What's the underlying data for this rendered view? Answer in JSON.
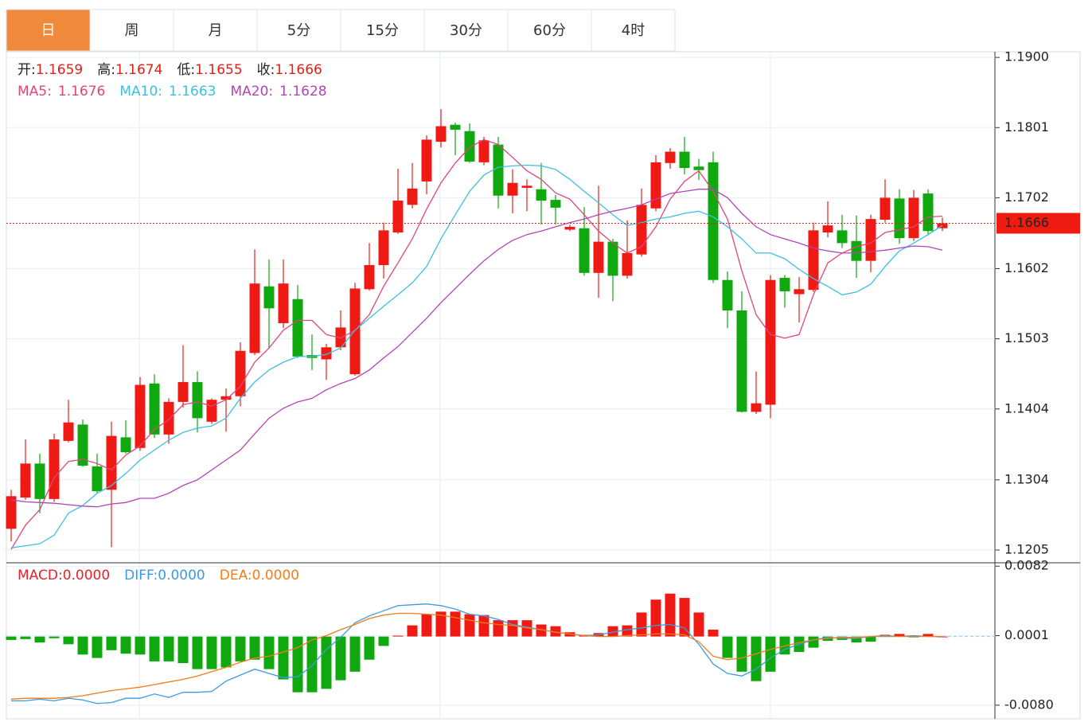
{
  "tabs": {
    "items": [
      "日",
      "周",
      "月",
      "5分",
      "15分",
      "30分",
      "60分",
      "4时"
    ],
    "active": 0
  },
  "chart_data": [
    {
      "type": "candlestick",
      "ylim": [
        1.1187,
        1.1908
      ],
      "yticks": [
        {
          "value": 1.19,
          "label": "1.1900"
        },
        1.1801,
        1.1702,
        1.1602,
        1.1503,
        1.1404,
        1.1304,
        1.1205
      ],
      "grid": true,
      "up_color": "#f01a14",
      "down_color": "#0fa80f",
      "last_price": 1.1666,
      "ohlc_labels": [
        {
          "label": "开:",
          "value": 1.1659
        },
        {
          "label": "高:",
          "value": 1.1674
        },
        {
          "label": "低:",
          "value": 1.1655
        },
        {
          "label": "收:",
          "value": 1.1666
        }
      ],
      "open": [
        1.1235,
        1.1279,
        1.1327,
        1.1277,
        1.1359,
        1.1382,
        1.1323,
        1.129,
        1.1364,
        1.1349,
        1.144,
        1.1368,
        1.1414,
        1.1442,
        1.1386,
        1.1417,
        1.1422,
        1.1483,
        1.1577,
        1.1525,
        1.1559,
        1.148,
        1.1474,
        1.1491,
        1.1453,
        1.1573,
        1.1607,
        1.1653,
        1.1692,
        1.1725,
        1.1781,
        1.1805,
        1.1796,
        1.1752,
        1.1777,
        1.1705,
        1.1716,
        1.1714,
        1.1699,
        1.1657,
        1.1659,
        1.1596,
        1.164,
        1.1592,
        1.1622,
        1.1687,
        1.1751,
        1.1767,
        1.1746,
        1.1752,
        1.1586,
        1.1543,
        1.14,
        1.141,
        1.1589,
        1.1566,
        1.1572,
        1.1653,
        1.1656,
        1.1641,
        1.1613,
        1.1671,
        1.1701,
        1.1645,
        1.1708,
        1.1659
      ],
      "high": [
        1.129,
        1.1361,
        1.1341,
        1.1369,
        1.1417,
        1.1389,
        1.1341,
        1.1386,
        1.1388,
        1.1449,
        1.1453,
        1.1419,
        1.1494,
        1.1457,
        1.1419,
        1.1433,
        1.1498,
        1.1629,
        1.1615,
        1.1615,
        1.1579,
        1.1509,
        1.1496,
        1.1543,
        1.1582,
        1.1638,
        1.1667,
        1.1743,
        1.1751,
        1.179,
        1.1827,
        1.1808,
        1.1807,
        1.1788,
        1.1788,
        1.1742,
        1.1728,
        1.1751,
        1.1706,
        1.1664,
        1.1689,
        1.1719,
        1.1644,
        1.167,
        1.1715,
        1.1762,
        1.1772,
        1.1788,
        1.1757,
        1.1767,
        1.1598,
        1.157,
        1.1457,
        1.1593,
        1.1593,
        1.159,
        1.1667,
        1.1697,
        1.1678,
        1.1677,
        1.1678,
        1.1728,
        1.1714,
        1.1713,
        1.1714,
        1.1674
      ],
      "low": [
        1.1217,
        1.1276,
        1.1257,
        1.1273,
        1.1357,
        1.1322,
        1.1285,
        1.1209,
        1.1341,
        1.1345,
        1.1363,
        1.1355,
        1.1406,
        1.1371,
        1.1383,
        1.1372,
        1.1408,
        1.148,
        1.1489,
        1.1518,
        1.1476,
        1.1459,
        1.1445,
        1.1487,
        1.1451,
        1.1571,
        1.1588,
        1.1651,
        1.1687,
        1.1707,
        1.1773,
        1.1762,
        1.1751,
        1.1748,
        1.1687,
        1.168,
        1.1683,
        1.1664,
        1.1664,
        1.1655,
        1.1592,
        1.1561,
        1.1556,
        1.1588,
        1.1619,
        1.1683,
        1.1743,
        1.1735,
        1.1727,
        1.1582,
        1.1518,
        1.1399,
        1.1397,
        1.1391,
        1.1547,
        1.1526,
        1.1569,
        1.1646,
        1.1631,
        1.1589,
        1.1597,
        1.1667,
        1.1637,
        1.1641,
        1.1649,
        1.1655
      ],
      "close": [
        1.1281,
        1.1327,
        1.1277,
        1.1361,
        1.1385,
        1.1324,
        1.1288,
        1.1366,
        1.1343,
        1.1438,
        1.1368,
        1.1414,
        1.1442,
        1.1391,
        1.1417,
        1.1422,
        1.1486,
        1.1581,
        1.1546,
        1.1581,
        1.1478,
        1.1476,
        1.1491,
        1.1519,
        1.1574,
        1.1607,
        1.1656,
        1.1698,
        1.1715,
        1.1784,
        1.1803,
        1.1798,
        1.1753,
        1.1783,
        1.1705,
        1.1723,
        1.1719,
        1.1698,
        1.1688,
        1.1661,
        1.1596,
        1.164,
        1.1592,
        1.1624,
        1.1692,
        1.1752,
        1.1767,
        1.1744,
        1.1741,
        1.1586,
        1.1543,
        1.14,
        1.1412,
        1.1586,
        1.157,
        1.1573,
        1.1656,
        1.1663,
        1.1638,
        1.1613,
        1.1672,
        1.1702,
        1.1645,
        1.1702,
        1.1655,
        1.1666
      ],
      "series": [
        {
          "name": "MA5:",
          "color": "#e0457b",
          "value_now": 1.1676,
          "values": [
            1.1206,
            1.124,
            1.1262,
            1.1307,
            1.133,
            1.1333,
            1.1327,
            1.1318,
            1.1339,
            1.1352,
            1.1375,
            1.1389,
            1.141,
            1.1414,
            1.1408,
            1.1417,
            1.1436,
            1.147,
            1.149,
            1.1515,
            1.1529,
            1.1529,
            1.1509,
            1.1504,
            1.1515,
            1.1537,
            1.1577,
            1.161,
            1.1644,
            1.1686,
            1.1723,
            1.1751,
            1.1773,
            1.1784,
            1.1777,
            1.1759,
            1.174,
            1.1728,
            1.1709,
            1.17,
            1.1678,
            1.1655,
            1.1638,
            1.1624,
            1.1633,
            1.1661,
            1.17,
            1.1725,
            1.174,
            1.1711,
            1.1672,
            1.1599,
            1.1537,
            1.1509,
            1.1504,
            1.1509,
            1.1565,
            1.161,
            1.1624,
            1.1633,
            1.1638,
            1.1653,
            1.1657,
            1.1661,
            1.1675,
            1.1676
          ]
        },
        {
          "name": "MA10:",
          "color": "#3cbfe0",
          "value_now": 1.1663,
          "values": [
            1.1208,
            1.1211,
            1.1214,
            1.1226,
            1.1257,
            1.1268,
            1.1285,
            1.1296,
            1.1313,
            1.1332,
            1.1346,
            1.136,
            1.1371,
            1.1377,
            1.138,
            1.1391,
            1.1419,
            1.1442,
            1.1459,
            1.147,
            1.1478,
            1.1478,
            1.1481,
            1.149,
            1.1515,
            1.1532,
            1.1549,
            1.1565,
            1.1582,
            1.1605,
            1.1644,
            1.1678,
            1.1711,
            1.1734,
            1.1745,
            1.1747,
            1.1748,
            1.1747,
            1.1742,
            1.1728,
            1.1711,
            1.1695,
            1.1678,
            1.1663,
            1.1667,
            1.1672,
            1.1675,
            1.168,
            1.1683,
            1.1675,
            1.1661,
            1.1644,
            1.1624,
            1.1624,
            1.1616,
            1.1601,
            1.1588,
            1.1577,
            1.1565,
            1.1569,
            1.158,
            1.1605,
            1.1627,
            1.1638,
            1.165,
            1.1663
          ]
        },
        {
          "name": "MA20:",
          "color": "#b046b4",
          "value_now": 1.1628,
          "values": [
            1.1276,
            1.1273,
            1.1272,
            1.1271,
            1.1269,
            1.1267,
            1.1266,
            1.127,
            1.1272,
            1.1278,
            1.1278,
            1.1285,
            1.1296,
            1.1304,
            1.1318,
            1.1332,
            1.1346,
            1.1369,
            1.1391,
            1.1405,
            1.1414,
            1.1419,
            1.1431,
            1.144,
            1.1447,
            1.1459,
            1.1476,
            1.1492,
            1.1512,
            1.1532,
            1.1554,
            1.1574,
            1.1594,
            1.1613,
            1.1629,
            1.1642,
            1.165,
            1.1655,
            1.1661,
            1.1667,
            1.1672,
            1.1678,
            1.1683,
            1.1687,
            1.1692,
            1.17,
            1.1708,
            1.1711,
            1.1714,
            1.1714,
            1.1702,
            1.168,
            1.1661,
            1.165,
            1.1644,
            1.1638,
            1.1631,
            1.1627,
            1.1624,
            1.1624,
            1.1626,
            1.1628,
            1.1631,
            1.1634,
            1.1633,
            1.1628
          ]
        }
      ]
    },
    {
      "type": "macd",
      "ylim": [
        -0.0095,
        0.0085
      ],
      "yticks": [
        0.0082,
        0.0001,
        {
          "value": -0.008,
          "label": "-0.0080"
        }
      ],
      "grid": true,
      "name": "MACD:",
      "color": "#e8202a",
      "value_now": 0,
      "value_now_label": "0.0000",
      "up_color": "#f01a14",
      "down_color": "#0fa80f",
      "values": [
        -0.0004,
        -0.0003,
        -0.0007,
        -0.0002,
        -0.0009,
        -0.0021,
        -0.0025,
        -0.0016,
        -0.002,
        -0.0021,
        -0.0029,
        -0.0029,
        -0.0031,
        -0.0038,
        -0.0038,
        -0.0036,
        -0.0029,
        -0.0027,
        -0.0038,
        -0.005,
        -0.0065,
        -0.0065,
        -0.0061,
        -0.0051,
        -0.0041,
        -0.0027,
        -0.0011,
        0.0001,
        0.0013,
        0.0026,
        0.0029,
        0.0029,
        0.0026,
        0.0025,
        0.0019,
        0.0019,
        0.0019,
        0.0014,
        0.0012,
        0.0005,
        0.0002,
        0.0004,
        0.0012,
        0.0013,
        0.0028,
        0.0043,
        0.005,
        0.0045,
        0.0028,
        0.0008,
        -0.0025,
        -0.0041,
        -0.0052,
        -0.0041,
        -0.0021,
        -0.0018,
        -0.0013,
        -0.0005,
        -0.0004,
        -0.0007,
        -0.0006,
        0.0002,
        0.0003,
        -0.0001,
        0.0003,
        0
      ],
      "series": [
        {
          "name": "DIFF:",
          "color": "#3a9be0",
          "value_now": 0,
          "value_now_label": "0.0000",
          "values": [
            -0.0075,
            -0.0075,
            -0.0073,
            -0.0075,
            -0.0072,
            -0.0074,
            -0.0078,
            -0.0077,
            -0.0072,
            -0.0072,
            -0.0067,
            -0.0071,
            -0.0065,
            -0.0065,
            -0.0064,
            -0.0052,
            -0.0045,
            -0.0038,
            -0.0043,
            -0.0048,
            -0.0047,
            -0.0034,
            -0.0015,
            -0.0001,
            0.0016,
            0.0024,
            0.003,
            0.0036,
            0.0037,
            0.0038,
            0.0036,
            0.0032,
            0.0026,
            0.0024,
            0.002,
            0.0014,
            0.0011,
            0.0008,
            0.0005,
            0.0003,
            0.0001,
            0.0002,
            0.0005,
            0.0008,
            0.001,
            0.0013,
            0.0014,
            0.001,
            -0.0009,
            -0.0032,
            -0.0043,
            -0.0046,
            -0.0038,
            -0.0025,
            -0.0015,
            -0.0009,
            -0.0004,
            -0.0001,
            -0.0002,
            -0.0002,
            0,
            0.0001,
            0,
            0.0001,
            0,
            0
          ]
        },
        {
          "name": "DEA:",
          "color": "#f07d1a",
          "value_now": 0,
          "value_now_label": "0.0000",
          "values": [
            -0.0073,
            -0.0072,
            -0.0072,
            -0.0072,
            -0.0071,
            -0.0069,
            -0.0066,
            -0.0063,
            -0.0061,
            -0.0059,
            -0.0056,
            -0.0053,
            -0.005,
            -0.0046,
            -0.0041,
            -0.0036,
            -0.003,
            -0.0025,
            -0.0023,
            -0.0018,
            -0.0013,
            -0.0004,
            0.0001,
            0.0008,
            0.0014,
            0.0021,
            0.0025,
            0.0027,
            0.0027,
            0.0026,
            0.0025,
            0.0022,
            0.0019,
            0.0016,
            0.0014,
            0.0013,
            0.001,
            0.0008,
            0.0005,
            0.0003,
            0.0001,
            0,
            0,
            0.0001,
            0.0002,
            0.0003,
            0.0003,
            0.0002,
            -0.0006,
            -0.0023,
            -0.0027,
            -0.0025,
            -0.002,
            -0.0015,
            -0.0011,
            -0.0007,
            -0.0004,
            -0.0002,
            -0.0001,
            -0.0001,
            0,
            0,
            0,
            0,
            0,
            0
          ]
        }
      ]
    }
  ]
}
